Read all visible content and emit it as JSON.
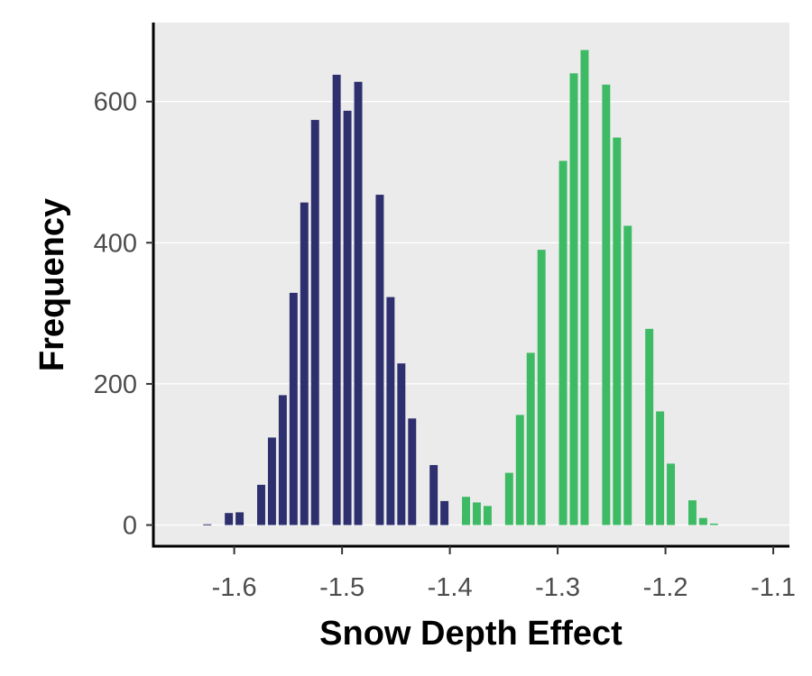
{
  "chart_data": {
    "type": "bar",
    "title": "",
    "xlabel": "Snow Depth Effect",
    "ylabel": "Frequency",
    "xlim": [
      -1.675,
      -1.085
    ],
    "ylim": [
      -30,
      712
    ],
    "xticks": [
      -1.6,
      -1.5,
      -1.4,
      -1.3,
      -1.2,
      -1.1
    ],
    "xtick_labels": [
      "-1.6",
      "-1.5",
      "-1.4",
      "-1.3",
      "-1.2",
      "-1.1"
    ],
    "yticks": [
      0,
      200,
      400,
      600
    ],
    "ytick_labels": [
      "0",
      "200",
      "400",
      "600"
    ],
    "grid": true,
    "legend": "none",
    "bin_width": 0.01,
    "series": [
      {
        "color": "#2e2f6e",
        "x": [
          -1.625,
          -1.615,
          -1.605,
          -1.595,
          -1.585,
          -1.575,
          -1.565,
          -1.555,
          -1.545,
          -1.535,
          -1.525,
          -1.515,
          -1.505,
          -1.495,
          -1.485,
          -1.475,
          -1.465,
          -1.455,
          -1.445,
          -1.435,
          -1.425,
          -1.415,
          -1.405,
          -1.395,
          -1.385,
          -1.375
        ],
        "values": [
          1,
          0,
          17,
          18,
          0,
          57,
          124,
          184,
          329,
          457,
          574,
          0,
          638,
          587,
          628,
          0,
          468,
          323,
          229,
          151,
          0,
          85,
          34,
          0,
          10,
          0
        ]
      },
      {
        "color": "#3dba64",
        "x": [
          -1.395,
          -1.385,
          -1.375,
          -1.365,
          -1.355,
          -1.345,
          -1.335,
          -1.325,
          -1.315,
          -1.305,
          -1.295,
          -1.285,
          -1.275,
          -1.265,
          -1.255,
          -1.245,
          -1.235,
          -1.225,
          -1.215,
          -1.205,
          -1.195,
          -1.185,
          -1.175,
          -1.165,
          -1.155,
          -1.145
        ],
        "values": [
          0,
          40,
          32,
          27,
          0,
          74,
          156,
          244,
          390,
          0,
          516,
          640,
          673,
          0,
          624,
          549,
          424,
          0,
          278,
          161,
          87,
          0,
          35,
          10,
          2,
          0
        ]
      }
    ]
  }
}
